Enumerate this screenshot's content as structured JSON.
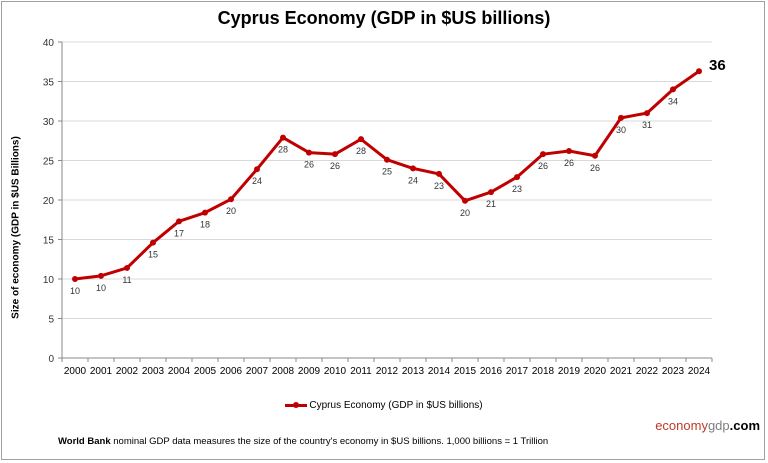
{
  "chart_data": {
    "type": "line",
    "title": "Cyprus Economy (GDP in $US billions)",
    "ylabel": "Size of economy (GDP in $US Billions)",
    "xlabel": "",
    "ylim": [
      0,
      40
    ],
    "yticks": [
      0,
      5,
      10,
      15,
      20,
      25,
      30,
      35,
      40
    ],
    "grid": true,
    "legend": "bottom",
    "categories": [
      "2000",
      "2001",
      "2002",
      "2003",
      "2004",
      "2005",
      "2006",
      "2007",
      "2008",
      "2009",
      "2010",
      "2011",
      "2012",
      "2013",
      "2014",
      "2015",
      "2016",
      "2017",
      "2018",
      "2019",
      "2020",
      "2021",
      "2022",
      "2023",
      "2024"
    ],
    "series": [
      {
        "name": "Cyprus Economy (GDP in $US billions)",
        "color": "#c00000",
        "values": [
          10.0,
          10.4,
          11.4,
          14.6,
          17.3,
          18.4,
          20.1,
          23.9,
          27.9,
          26.0,
          25.8,
          27.7,
          25.1,
          24.0,
          23.3,
          19.9,
          21.0,
          22.9,
          25.8,
          26.2,
          25.6,
          30.4,
          31.0,
          34.0,
          36.3
        ],
        "data_labels": [
          "10",
          "10",
          "11",
          "15",
          "17",
          "18",
          "20",
          "24",
          "28",
          "26",
          "26",
          "28",
          "25",
          "24",
          "23",
          "20",
          "21",
          "23",
          "26",
          "26",
          "26",
          "30",
          "31",
          "34",
          "36"
        ]
      }
    ]
  },
  "legend_label": "Cyprus Economy (GDP in $US billions)",
  "brand": {
    "part1": "economy",
    "part2": "gdp",
    "part3": ".com",
    "color1": "#c0392b"
  },
  "footer": {
    "bold": "World Bank",
    "text": " nominal GDP data  measures the size of the country's economy in $US billions. 1,000 billions = 1 Trillion"
  }
}
